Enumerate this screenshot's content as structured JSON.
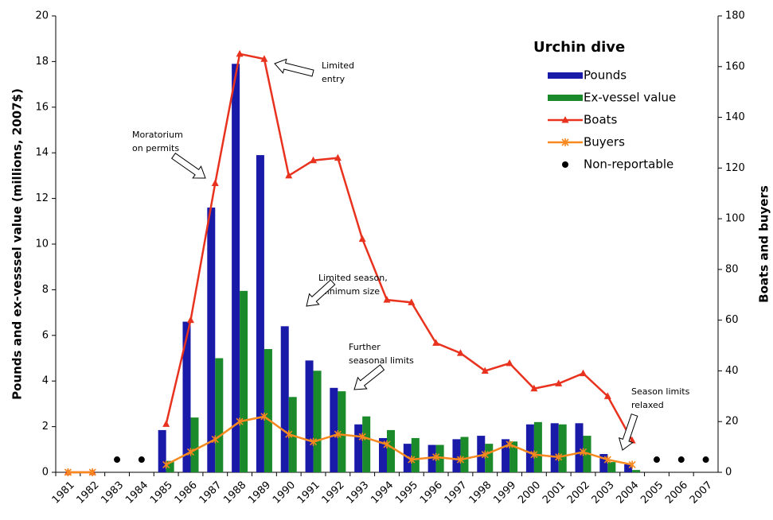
{
  "chart_data": {
    "type": "combo",
    "y_label": "Pounds and ex-vesssel value (millions, 2007$)",
    "y2_label": "Boats and buyers",
    "legend_title": "Urchin dive",
    "legend": "upper right",
    "categories": [
      "1981",
      "1982",
      "1983",
      "1984",
      "1985",
      "1986",
      "1987",
      "1988",
      "1989",
      "1990",
      "1991",
      "1992",
      "1993",
      "1994",
      "1995",
      "1996",
      "1997",
      "1998",
      "1999",
      "2000",
      "2001",
      "2002",
      "2003",
      "2004",
      "2005",
      "2006",
      "2007"
    ],
    "ylim": [
      0,
      20
    ],
    "yticks": [
      0,
      2,
      4,
      6,
      8,
      10,
      12,
      14,
      16,
      18,
      20
    ],
    "y2lim": [
      0,
      180
    ],
    "y2ticks": [
      0,
      20,
      40,
      60,
      80,
      100,
      120,
      140,
      160,
      180
    ],
    "series": [
      {
        "name": "Pounds",
        "type": "bar",
        "axis": "y",
        "color": "#1a1aa8",
        "values": [
          null,
          null,
          null,
          null,
          1.85,
          6.6,
          11.6,
          17.9,
          13.9,
          6.4,
          4.9,
          3.7,
          2.1,
          1.5,
          1.25,
          1.2,
          1.45,
          1.6,
          1.45,
          2.1,
          2.15,
          2.15,
          0.8,
          0.35,
          null,
          null,
          null
        ]
      },
      {
        "name": "Ex-vessel value",
        "type": "bar",
        "axis": "y",
        "color": "#1a8a2a",
        "values": [
          null,
          null,
          null,
          null,
          0.5,
          2.4,
          5.0,
          7.95,
          5.4,
          3.3,
          4.45,
          3.55,
          2.45,
          1.85,
          1.5,
          1.2,
          1.55,
          1.25,
          1.35,
          2.2,
          2.1,
          1.6,
          0.45,
          0.1,
          null,
          null,
          null
        ]
      },
      {
        "name": "Boats",
        "type": "line",
        "marker": "triangle",
        "axis": "y2",
        "color": "#e8321e",
        "values": [
          0,
          0,
          null,
          null,
          19,
          60,
          114,
          165,
          163,
          117,
          123,
          124,
          92,
          68,
          67,
          51,
          47,
          40,
          43,
          33,
          35,
          39,
          30,
          12.5,
          null,
          null,
          null
        ]
      },
      {
        "name": "Buyers",
        "type": "line",
        "marker": "star",
        "axis": "y2",
        "color": "#f7891f",
        "values": [
          0,
          0,
          null,
          null,
          3,
          8,
          13,
          20,
          22,
          15,
          12,
          15,
          14,
          11,
          5,
          6,
          5,
          7,
          11,
          7,
          6,
          8,
          5,
          3,
          null,
          null,
          null
        ]
      },
      {
        "name": "Non-reportable",
        "type": "scatter",
        "axis": "y2",
        "color": "#000000",
        "values": [
          null,
          null,
          5,
          5,
          null,
          null,
          null,
          null,
          null,
          null,
          null,
          null,
          null,
          null,
          null,
          null,
          null,
          null,
          null,
          null,
          null,
          null,
          null,
          null,
          5,
          5,
          5
        ]
      }
    ],
    "annotations": [
      {
        "lines": [
          "Moratorium",
          "on permits"
        ]
      },
      {
        "lines": [
          "Limited",
          "entry"
        ]
      },
      {
        "lines": [
          "Limited season,",
          "minimum size"
        ]
      },
      {
        "lines": [
          "Further",
          "seasonal limits"
        ]
      },
      {
        "lines": [
          "Season limits",
          "relaxed"
        ]
      }
    ]
  }
}
